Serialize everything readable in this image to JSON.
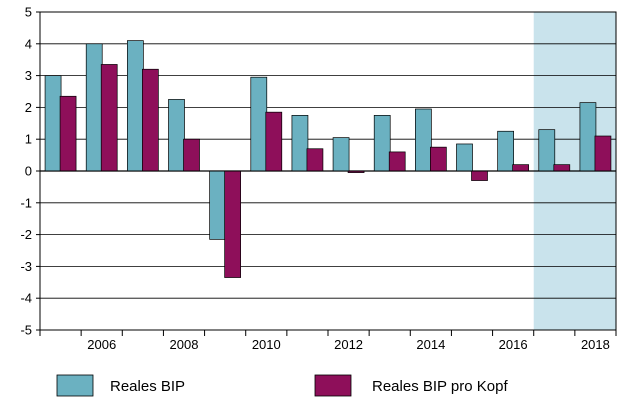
{
  "chart_data": {
    "type": "bar",
    "x": [
      2005,
      2006,
      2007,
      2008,
      2009,
      2010,
      2011,
      2012,
      2013,
      2014,
      2015,
      2016,
      2017,
      2018
    ],
    "x_tick_labels": [
      "2006",
      "2008",
      "2010",
      "2012",
      "2014",
      "2016",
      "2018"
    ],
    "y_tick_labels": [
      "5",
      "4",
      "3",
      "2",
      "1",
      "0",
      "-1",
      "-2",
      "-3",
      "-4",
      "-5"
    ],
    "ylim": [
      -5,
      5
    ],
    "grid": "horizontal",
    "legend_position": "bottom",
    "shaded_x_range": [
      2017,
      2018
    ],
    "series": [
      {
        "name": "Reales BIP",
        "color": "#6bb1c1",
        "values": [
          3.0,
          4.0,
          4.1,
          2.25,
          -2.15,
          2.95,
          1.75,
          1.05,
          1.75,
          1.95,
          0.85,
          1.25,
          1.3,
          2.15
        ]
      },
      {
        "name": "Reales BIP pro Kopf",
        "color": "#8e0f5a",
        "values": [
          2.35,
          3.35,
          3.2,
          1.0,
          -3.35,
          1.85,
          0.7,
          -0.05,
          0.6,
          0.75,
          -0.3,
          0.2,
          0.2,
          1.1
        ]
      }
    ],
    "shade_color": "#c9e3ec"
  }
}
